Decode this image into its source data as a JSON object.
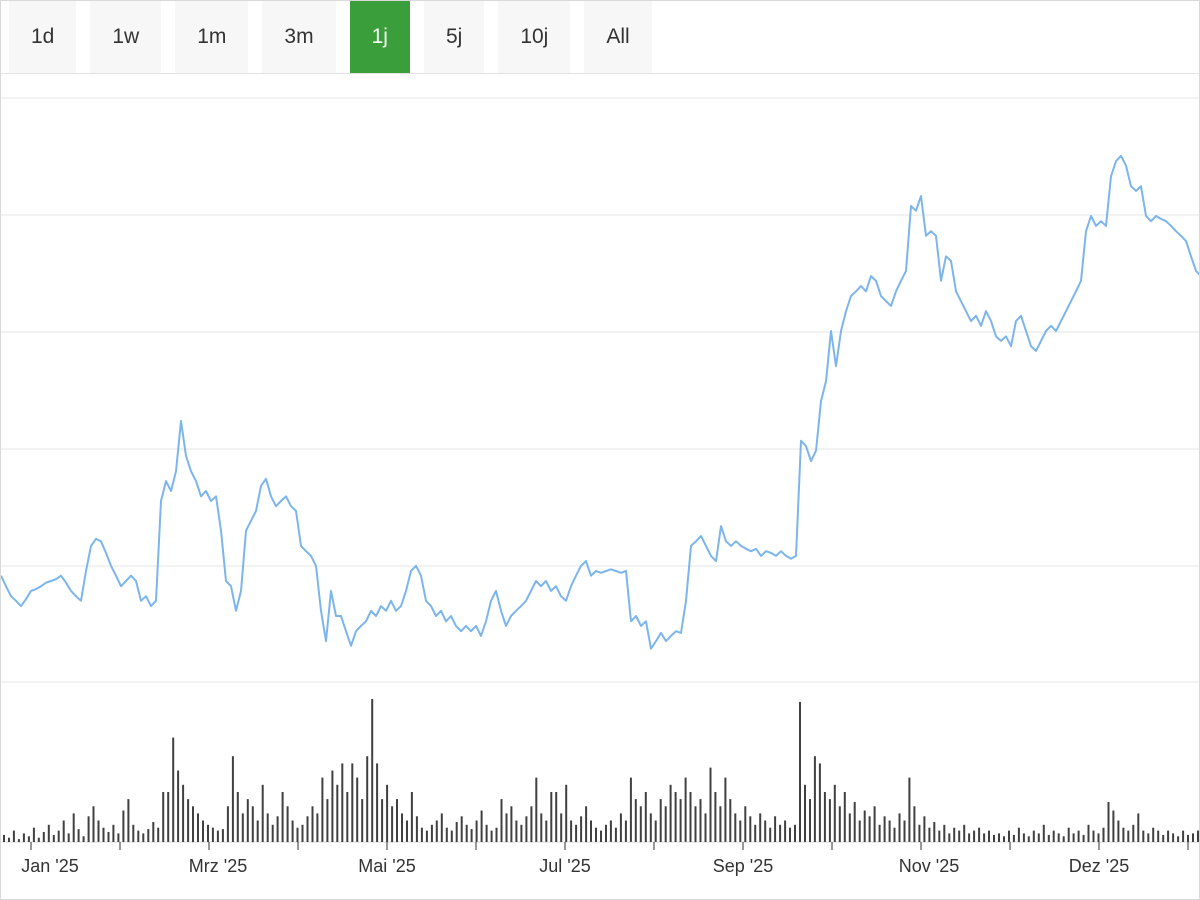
{
  "toolbar": {
    "ranges": [
      {
        "label": "1d",
        "selected": false
      },
      {
        "label": "1w",
        "selected": false
      },
      {
        "label": "1m",
        "selected": false
      },
      {
        "label": "3m",
        "selected": false
      },
      {
        "label": "1j",
        "selected": true
      },
      {
        "label": "5j",
        "selected": false
      },
      {
        "label": "10j",
        "selected": false
      },
      {
        "label": "All",
        "selected": false
      }
    ]
  },
  "colors": {
    "accent_green": "#3a9e3a",
    "line_blue": "#7cb5ec",
    "volume_gray": "#404040",
    "grid": "#e6e6e6",
    "axis_line": "#d8d8d8",
    "tick": "#333333",
    "button_bg": "#f7f7f7"
  },
  "chart_data": {
    "type": "line",
    "title": "",
    "xlabel": "",
    "ylabel": "",
    "x_tick_labels": [
      "Jan '25",
      "Mrz '25",
      "Mai '25",
      "Jul '25",
      "Sep '25",
      "Nov '25",
      "Dez '25"
    ],
    "x_range_months": [
      "Jan 2025",
      "Jan 2026"
    ],
    "y_axis": {
      "labels_visible": false,
      "normalized_range": [
        0,
        100
      ]
    },
    "grid": true,
    "legend": false,
    "panes": [
      "price",
      "volume"
    ],
    "series": [
      {
        "name": "price",
        "color": "#7cb5ec",
        "values": [
          18.2,
          16.4,
          14.7,
          13.9,
          13.0,
          14.2,
          15.6,
          15.9,
          16.4,
          17.0,
          17.3,
          17.6,
          18.2,
          17.0,
          15.6,
          14.7,
          13.9,
          19.0,
          23.3,
          24.5,
          24.1,
          22.1,
          19.9,
          18.2,
          16.4,
          17.3,
          18.2,
          17.3,
          13.9,
          14.7,
          13.0,
          13.9,
          31.0,
          34.4,
          32.7,
          36.1,
          44.7,
          38.7,
          36.1,
          34.4,
          31.8,
          32.7,
          31.0,
          31.8,
          25.9,
          17.3,
          16.4,
          12.2,
          15.6,
          25.9,
          27.6,
          29.3,
          33.6,
          34.8,
          31.8,
          30.1,
          31.0,
          31.8,
          30.1,
          29.3,
          23.3,
          22.4,
          21.6,
          19.9,
          12.2,
          7.0,
          15.6,
          11.3,
          11.3,
          8.7,
          6.2,
          8.7,
          9.6,
          10.4,
          12.2,
          11.3,
          13.0,
          12.2,
          13.9,
          12.2,
          13.0,
          15.6,
          19.0,
          19.9,
          18.2,
          13.9,
          13.0,
          11.3,
          12.2,
          10.4,
          11.3,
          9.6,
          8.7,
          9.6,
          8.7,
          9.6,
          7.9,
          10.4,
          13.9,
          15.6,
          12.2,
          9.6,
          11.3,
          12.2,
          13.0,
          13.9,
          15.6,
          17.3,
          16.4,
          17.3,
          15.6,
          16.4,
          14.7,
          13.9,
          16.4,
          18.2,
          19.9,
          20.7,
          18.2,
          19.0,
          18.7,
          19.0,
          19.3,
          19.0,
          18.7,
          19.0,
          10.4,
          11.3,
          9.6,
          10.4,
          5.7,
          7.0,
          8.4,
          7.0,
          7.9,
          8.7,
          8.4,
          13.9,
          23.3,
          24.1,
          25.0,
          23.3,
          21.6,
          20.7,
          26.7,
          24.1,
          23.3,
          24.1,
          23.3,
          22.8,
          22.4,
          22.8,
          21.6,
          22.4,
          22.1,
          21.6,
          22.4,
          21.6,
          21.1,
          21.6,
          41.3,
          40.4,
          37.8,
          39.6,
          48.1,
          51.5,
          60.1,
          54.1,
          60.1,
          63.5,
          66.1,
          66.9,
          67.8,
          66.9,
          69.5,
          68.7,
          66.1,
          65.2,
          64.4,
          66.9,
          68.7,
          70.4,
          81.5,
          80.7,
          83.2,
          76.4,
          77.2,
          76.4,
          68.7,
          72.9,
          72.1,
          66.9,
          65.2,
          63.5,
          61.8,
          62.7,
          61.0,
          63.5,
          61.8,
          59.2,
          58.4,
          59.2,
          57.5,
          61.8,
          62.7,
          60.1,
          57.5,
          56.7,
          58.4,
          60.1,
          61.0,
          60.1,
          61.8,
          63.5,
          65.2,
          66.9,
          68.7,
          77.2,
          79.8,
          78.1,
          78.9,
          78.1,
          86.6,
          89.2,
          90.1,
          88.4,
          84.9,
          84.1,
          84.9,
          79.8,
          78.9,
          79.8,
          79.3,
          78.9,
          78.1,
          77.2,
          76.4,
          75.5,
          72.9,
          70.4,
          69.5
        ]
      }
    ],
    "volume_series": {
      "name": "volume",
      "color": "#404040",
      "values": [
        5,
        3,
        8,
        2,
        6,
        4,
        10,
        3,
        7,
        12,
        5,
        8,
        15,
        6,
        20,
        9,
        4,
        18,
        25,
        15,
        10,
        7,
        12,
        6,
        22,
        30,
        12,
        8,
        6,
        9,
        14,
        10,
        35,
        35,
        73,
        50,
        40,
        30,
        25,
        20,
        15,
        12,
        10,
        8,
        9,
        25,
        60,
        35,
        20,
        30,
        25,
        15,
        40,
        20,
        12,
        18,
        35,
        25,
        15,
        10,
        12,
        18,
        25,
        20,
        45,
        30,
        50,
        40,
        55,
        35,
        55,
        45,
        30,
        60,
        100,
        55,
        30,
        40,
        25,
        30,
        20,
        15,
        35,
        18,
        10,
        8,
        12,
        15,
        20,
        10,
        8,
        14,
        18,
        12,
        9,
        15,
        22,
        12,
        8,
        10,
        30,
        20,
        25,
        15,
        12,
        18,
        25,
        45,
        20,
        15,
        35,
        35,
        20,
        40,
        15,
        12,
        18,
        25,
        15,
        10,
        8,
        12,
        15,
        10,
        20,
        15,
        45,
        30,
        25,
        35,
        20,
        15,
        30,
        25,
        40,
        35,
        30,
        45,
        35,
        25,
        30,
        20,
        52,
        35,
        25,
        45,
        30,
        20,
        15,
        25,
        18,
        12,
        20,
        15,
        10,
        18,
        12,
        15,
        10,
        12,
        98,
        40,
        30,
        60,
        55,
        35,
        30,
        40,
        25,
        35,
        20,
        28,
        15,
        22,
        18,
        25,
        12,
        18,
        15,
        10,
        20,
        15,
        45,
        25,
        12,
        18,
        10,
        14,
        8,
        12,
        6,
        10,
        8,
        12,
        6,
        8,
        10,
        6,
        8,
        5,
        6,
        4,
        8,
        5,
        10,
        6,
        4,
        8,
        6,
        12,
        5,
        8,
        6,
        4,
        10,
        6,
        8,
        5,
        12,
        8,
        6,
        10,
        28,
        22,
        15,
        10,
        8,
        12,
        20,
        8,
        6,
        10,
        8,
        5,
        8,
        6,
        4,
        8,
        5,
        6,
        8
      ]
    }
  }
}
